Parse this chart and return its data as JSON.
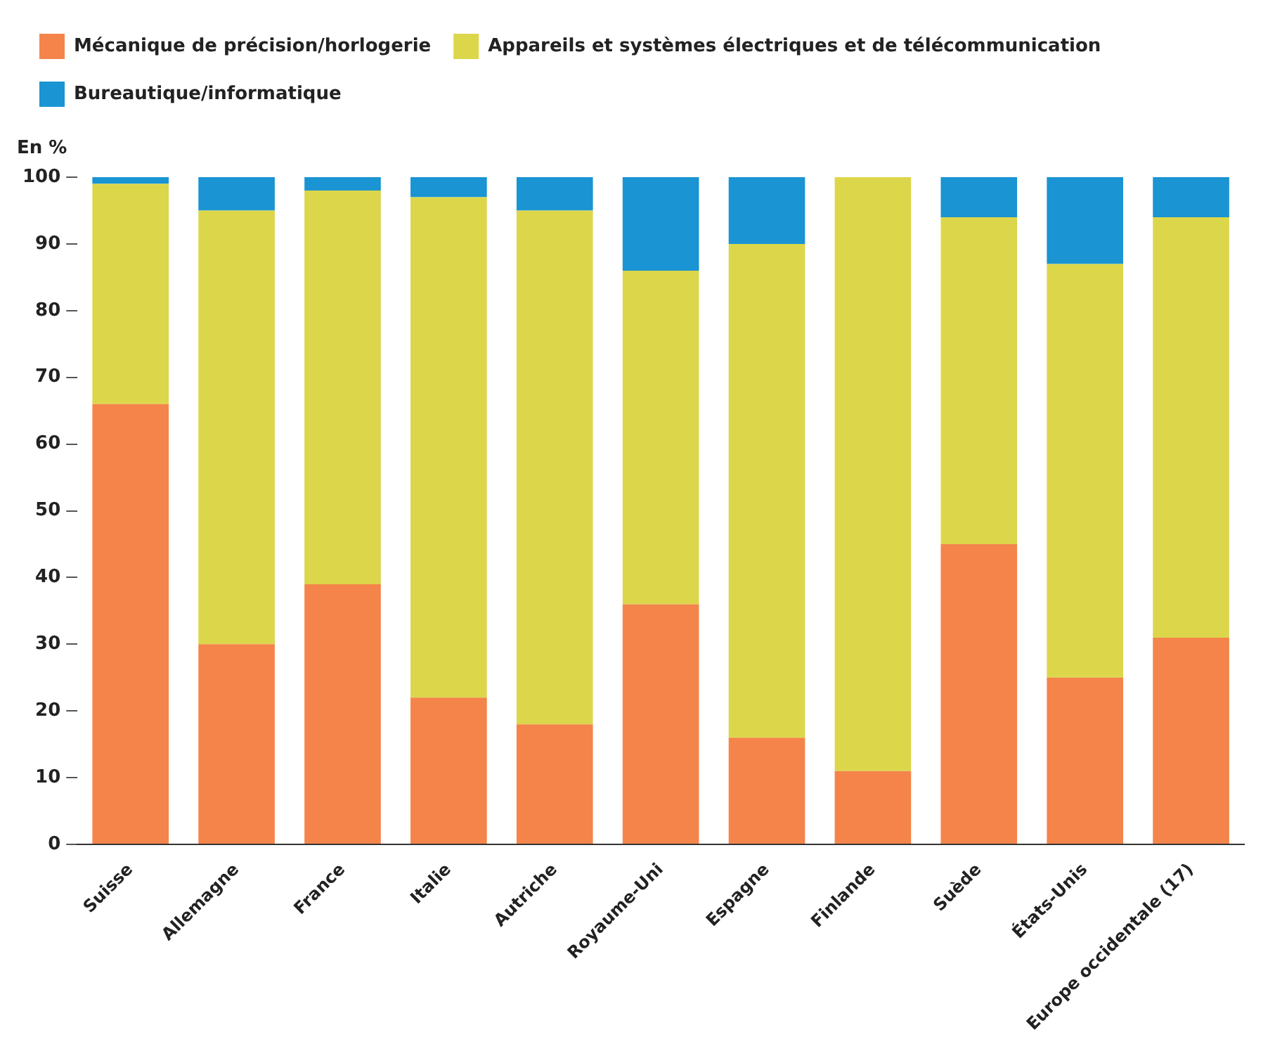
{
  "chart_data": {
    "type": "bar",
    "stacked": true,
    "ylabel": "En %",
    "categories": [
      "Suisse",
      "Allemagne",
      "France",
      "Italie",
      "Autriche",
      "Royaume-Uni",
      "Espagne",
      "Finlande",
      "Suède",
      "États-Unis",
      "Europe occidentale (17)"
    ],
    "series": [
      {
        "name": "Mécanique de précision/horlogerie",
        "color": "#f4844a",
        "values": [
          66,
          30,
          39,
          22,
          18,
          36,
          16,
          11,
          45,
          25,
          31
        ]
      },
      {
        "name": "Appareils et systèmes électriques et de télécommunication",
        "color": "#dcd74a",
        "values": [
          33,
          65,
          59,
          75,
          77,
          50,
          74,
          89,
          49,
          62,
          63
        ]
      },
      {
        "name": "Bureautique/informatique",
        "color": "#1a94d2",
        "values": [
          1,
          5,
          2,
          3,
          5,
          14,
          10,
          0,
          6,
          13,
          6
        ]
      }
    ],
    "ylim": [
      0,
      100
    ],
    "yticks": [
      0,
      10,
      20,
      30,
      40,
      50,
      60,
      70,
      80,
      90,
      100
    ],
    "grid": false,
    "legend": "top left"
  }
}
